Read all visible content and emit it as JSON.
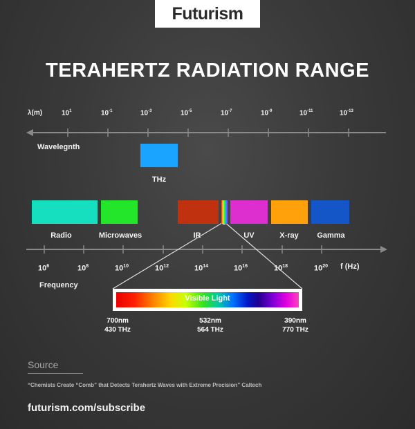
{
  "header": {
    "logo": "Futurism",
    "title": "TERAHERTZ RADIATION RANGE"
  },
  "wavelength_axis": {
    "unit_label": "λ(m)",
    "axis_name": "Wavelegnth",
    "ticks": [
      {
        "base": "10",
        "exp": "1"
      },
      {
        "base": "10",
        "exp": "-1"
      },
      {
        "base": "10",
        "exp": "-3"
      },
      {
        "base": "10",
        "exp": "-5"
      },
      {
        "base": "10",
        "exp": "-7"
      },
      {
        "base": "10",
        "exp": "-9"
      },
      {
        "base": "10",
        "exp": "-11"
      },
      {
        "base": "10",
        "exp": "-13"
      }
    ]
  },
  "thz_band": {
    "label": "THz",
    "color": "#1aa3ff"
  },
  "bands": [
    {
      "label": "Radio",
      "color": "#16dfc0"
    },
    {
      "label": "Microwaves",
      "color": "#23e52a"
    },
    {
      "label": "IR",
      "color": "#c0320f"
    },
    {
      "label": "UV",
      "color": "#dd2fd0"
    },
    {
      "label": "X-ray",
      "color": "#ffa10a"
    },
    {
      "label": "Gamma",
      "color": "#1456c8"
    }
  ],
  "frequency_axis": {
    "unit_label": "f (Hz)",
    "axis_name": "Frequency",
    "ticks": [
      {
        "base": "10",
        "exp": "6"
      },
      {
        "base": "10",
        "exp": "8"
      },
      {
        "base": "10",
        "exp": "10"
      },
      {
        "base": "10",
        "exp": "12"
      },
      {
        "base": "10",
        "exp": "14"
      },
      {
        "base": "10",
        "exp": "16"
      },
      {
        "base": "10",
        "exp": "18"
      },
      {
        "base": "10",
        "exp": "20"
      }
    ]
  },
  "visible": {
    "label": "Visible Light",
    "points": [
      {
        "wavelength": "700nm",
        "frequency": "430 THz"
      },
      {
        "wavelength": "532nm",
        "frequency": "564 THz"
      },
      {
        "wavelength": "390nm",
        "frequency": "770 THz"
      }
    ]
  },
  "source": {
    "heading": "Source",
    "citation": "“Chemists Create “Comb” that Detects Terahertz Waves with Extreme Precision” Caltech"
  },
  "footer": {
    "subscribe": "futurism.com/subscribe"
  }
}
